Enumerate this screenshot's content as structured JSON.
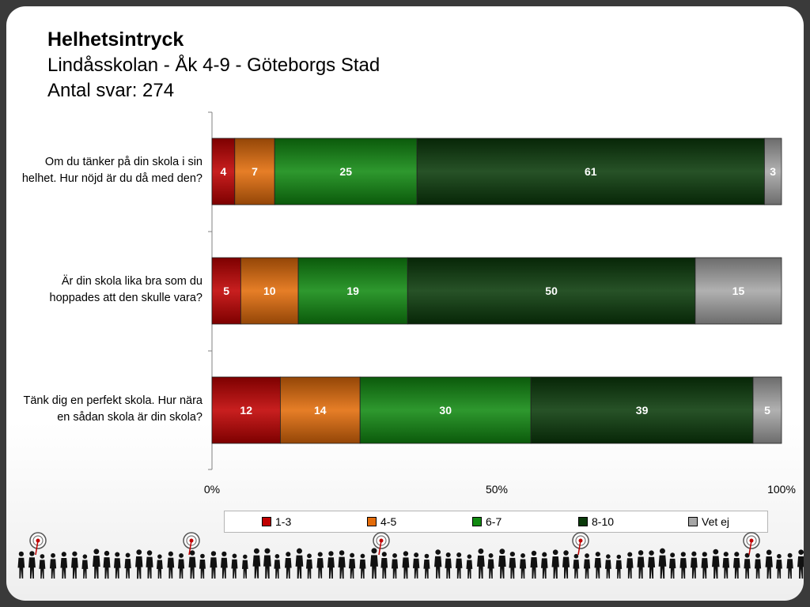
{
  "header": {
    "title": "Helhetsintryck",
    "subtitle": "Lindåsskolan - Åk 4-9 - Göteborgs Stad",
    "responses": "Antal svar: 274"
  },
  "chart_data": {
    "type": "bar",
    "orientation": "horizontal",
    "stacked": "percent",
    "categories": [
      "Om du tänker på din skola i sin helhet. Hur nöjd är du då med den?",
      "Är din skola lika bra som du hoppades att den skulle vara?",
      "Tänk dig en perfekt skola. Hur nära en sådan skola är din skola?"
    ],
    "category_lines": [
      [
        "Om du tänker på din skola i sin",
        "helhet. Hur nöjd är du då med den?"
      ],
      [
        "Är din skola lika bra som du",
        "hoppades att den skulle vara?"
      ],
      [
        "Tänk dig en perfekt skola. Hur nära",
        "en sådan skola är din skola?"
      ]
    ],
    "series": [
      {
        "name": "1-3",
        "values": [
          4,
          5,
          12
        ],
        "color": "#c00000"
      },
      {
        "name": "4-5",
        "values": [
          7,
          10,
          14
        ],
        "color": "#e36c0a"
      },
      {
        "name": "6-7",
        "values": [
          25,
          19,
          30
        ],
        "color": "#118a11"
      },
      {
        "name": "8-10",
        "values": [
          61,
          50,
          39
        ],
        "color": "#0a3a0a"
      },
      {
        "name": "Vet ej",
        "values": [
          3,
          15,
          5
        ],
        "color": "#a6a6a6"
      }
    ],
    "xlim": [
      0,
      100
    ],
    "x_ticks": [
      "0%",
      "50%",
      "100%"
    ],
    "legend_position": "bottom",
    "grid": false
  }
}
